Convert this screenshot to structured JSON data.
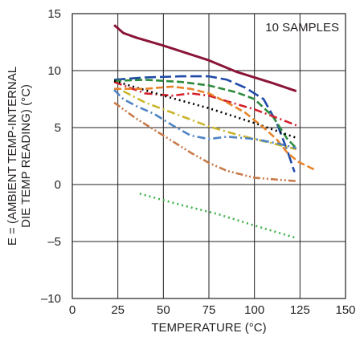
{
  "chart_data": {
    "type": "line",
    "title": "",
    "xlabel": "TEMPERATURE (°C)",
    "ylabel_lines": [
      "E = (AMBIENT TEMP-INTERNAL",
      "DIE TEMP READING) (°C)"
    ],
    "annotation": "10 SAMPLES",
    "xlim": [
      0,
      150
    ],
    "ylim": [
      -10,
      15
    ],
    "x_ticks": [
      0,
      25,
      50,
      75,
      100,
      125,
      150
    ],
    "x_tick_labels": [
      "0",
      "25",
      "50",
      "75",
      "100",
      "125",
      "150"
    ],
    "y_ticks": [
      -10,
      -5,
      0,
      5,
      10,
      15
    ],
    "y_tick_labels": [
      "–10",
      "–5",
      "0",
      "5",
      "10",
      "15"
    ],
    "grid": true,
    "series": [
      {
        "color": "#8b1538",
        "style": "solid",
        "points": [
          [
            23,
            14.0
          ],
          [
            28,
            13.3
          ],
          [
            35,
            12.9
          ],
          [
            50,
            12.2
          ],
          [
            75,
            10.9
          ],
          [
            90,
            9.9
          ],
          [
            110,
            8.9
          ],
          [
            123,
            8.2
          ]
        ]
      },
      {
        "color": "#1f4aa8",
        "style": "longdash",
        "points": [
          [
            23,
            9.2
          ],
          [
            40,
            9.4
          ],
          [
            60,
            9.5
          ],
          [
            75,
            9.5
          ],
          [
            85,
            9.2
          ],
          [
            95,
            8.5
          ],
          [
            105,
            7.5
          ],
          [
            112,
            5.5
          ],
          [
            118,
            3.0
          ],
          [
            122,
            1.1
          ]
        ]
      },
      {
        "color": "#2e8b3e",
        "style": "dash",
        "points": [
          [
            23,
            9.1
          ],
          [
            40,
            9.2
          ],
          [
            60,
            9.0
          ],
          [
            75,
            8.7
          ],
          [
            90,
            8.1
          ],
          [
            100,
            7.5
          ],
          [
            110,
            6.0
          ],
          [
            118,
            4.0
          ],
          [
            123,
            3.2
          ]
        ]
      },
      {
        "color": "#d4202a",
        "style": "dashdot",
        "points": [
          [
            23,
            9.0
          ],
          [
            40,
            8.0
          ],
          [
            55,
            7.8
          ],
          [
            65,
            8.0
          ],
          [
            75,
            7.8
          ],
          [
            85,
            7.3
          ],
          [
            100,
            6.6
          ],
          [
            115,
            5.7
          ],
          [
            123,
            5.2
          ]
        ]
      },
      {
        "color": "#000000",
        "style": "dot",
        "points": [
          [
            23,
            9.1
          ],
          [
            50,
            7.8
          ],
          [
            75,
            6.7
          ],
          [
            100,
            5.4
          ],
          [
            123,
            4.1
          ]
        ]
      },
      {
        "color": "#e8832a",
        "style": "dash",
        "points": [
          [
            23,
            8.4
          ],
          [
            40,
            8.4
          ],
          [
            55,
            8.6
          ],
          [
            65,
            8.4
          ],
          [
            75,
            8.0
          ],
          [
            85,
            7.2
          ],
          [
            95,
            6.3
          ],
          [
            105,
            5.0
          ],
          [
            112,
            4.0
          ],
          [
            118,
            2.8
          ],
          [
            124,
            2.0
          ],
          [
            133,
            1.3
          ]
        ]
      },
      {
        "color": "#c9b52a",
        "style": "dashdot",
        "points": [
          [
            28,
            8.2
          ],
          [
            40,
            7.2
          ],
          [
            55,
            6.3
          ],
          [
            75,
            5.1
          ],
          [
            90,
            4.4
          ],
          [
            105,
            3.8
          ],
          [
            123,
            3.1
          ]
        ]
      },
      {
        "color": "#4f83c4",
        "style": "dashdot",
        "points": [
          [
            23,
            8.3
          ],
          [
            28,
            7.5
          ],
          [
            35,
            6.9
          ],
          [
            45,
            6.2
          ],
          [
            55,
            5.2
          ],
          [
            65,
            4.3
          ],
          [
            75,
            4.0
          ],
          [
            85,
            4.2
          ],
          [
            100,
            4.0
          ],
          [
            113,
            3.6
          ],
          [
            123,
            3.2
          ]
        ]
      },
      {
        "color": "#c87a48",
        "style": "dashdotdot",
        "points": [
          [
            23,
            7.2
          ],
          [
            35,
            5.8
          ],
          [
            50,
            4.3
          ],
          [
            65,
            2.8
          ],
          [
            75,
            1.9
          ],
          [
            85,
            1.2
          ],
          [
            100,
            0.6
          ],
          [
            115,
            0.4
          ],
          [
            123,
            0.3
          ]
        ]
      },
      {
        "color": "#3fb24a",
        "style": "dot",
        "points": [
          [
            37,
            -0.8
          ],
          [
            60,
            -1.8
          ],
          [
            80,
            -2.6
          ],
          [
            100,
            -3.6
          ],
          [
            123,
            -4.7
          ]
        ]
      }
    ]
  }
}
